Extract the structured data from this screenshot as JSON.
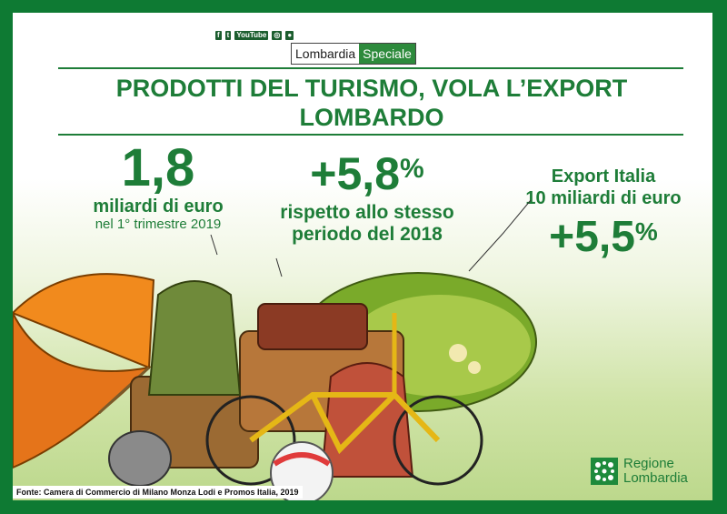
{
  "header": {
    "social": [
      "f",
      "t",
      "YouTube",
      "◎",
      "●"
    ],
    "brand_part1": "Lombardia",
    "brand_part2": "Speciale"
  },
  "title": {
    "line1": "PRODOTTI DEL TURISMO, VOLA L’EXPORT",
    "line2": "LOMBARDO"
  },
  "stat1": {
    "value": "1,8",
    "unit": "miliardi di euro",
    "period": "nel 1° trimestre 2019"
  },
  "stat2": {
    "value": "+5,8",
    "percent": "%",
    "line1": "rispetto allo stesso",
    "line2": "periodo del 2018"
  },
  "stat3": {
    "line1": "Export Italia",
    "line2": "10 miliardi di euro",
    "value": "+5,5",
    "percent": "%"
  },
  "footer": {
    "source": "Fonte: Camera di Commercio di Milano Monza Lodi e Promos Italia, 2019",
    "logo_line1": "Regione",
    "logo_line2": "Lombardia"
  },
  "colors": {
    "frame": "#0e7a33",
    "accent": "#1e7d38"
  }
}
